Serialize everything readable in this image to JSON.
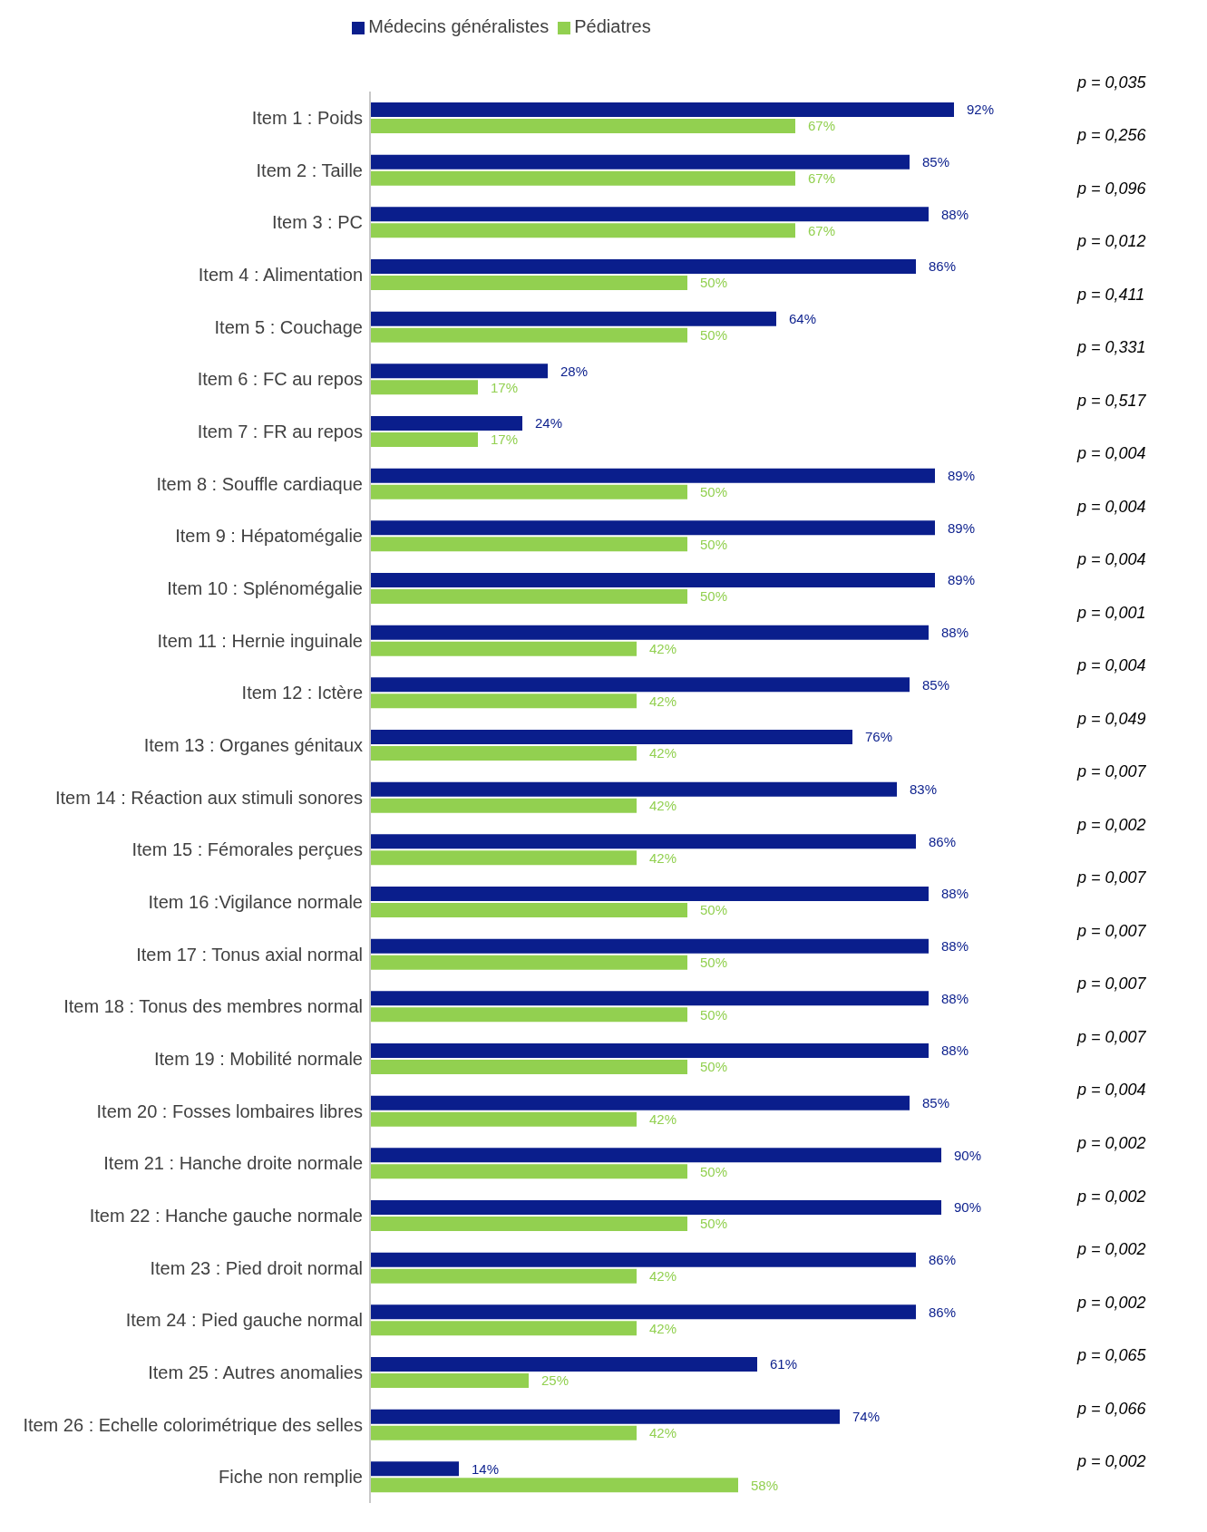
{
  "chart_data": {
    "type": "bar",
    "orientation": "horizontal",
    "legend": "top",
    "tick_labels": "y",
    "categories": [
      "Item 1 : Poids",
      "Item 2 : Taille",
      "Item 3 : PC",
      "Item 4 : Alimentation",
      "Item 5 : Couchage",
      "Item 6 : FC au repos",
      "Item 7 : FR au repos",
      "Item 8 : Souffle cardiaque",
      "Item 9 : Hépatomégalie",
      "Item 10 : Splénomégalie",
      "Item 11 : Hernie inguinale",
      "Item 12 : Ictère",
      "Item 13 : Organes génitaux",
      "Item 14 : Réaction aux stimuli sonores",
      "Item 15 : Fémorales perçues",
      "Item 16 :Vigilance normale",
      "Item 17 : Tonus axial normal",
      "Item 18 : Tonus des membres normal",
      "Item 19 : Mobilité normale",
      "Item 20 : Fosses lombaires libres",
      "Item 21 : Hanche droite normale",
      "Item 22 : Hanche gauche normale",
      "Item 23 : Pied droit normal",
      "Item 24 : Pied gauche normal",
      "Item 25 : Autres anomalies",
      "Item 26 : Echelle colorimétrique des selles",
      "Fiche non remplie"
    ],
    "series": [
      {
        "name": "Médecins généralistes",
        "color": "#0a1e8c",
        "values": [
          92,
          85,
          88,
          86,
          64,
          28,
          24,
          89,
          89,
          89,
          88,
          85,
          76,
          83,
          86,
          88,
          88,
          88,
          88,
          85,
          90,
          90,
          86,
          86,
          61,
          74,
          14
        ],
        "value_labels": [
          "92%",
          "85%",
          "88%",
          "86%",
          "64%",
          "28%",
          "24%",
          "89%",
          "89%",
          "89%",
          "88%",
          "85%",
          "76%",
          "83%",
          "86%",
          "88%",
          "88%",
          "88%",
          "88%",
          "85%",
          "90%",
          "90%",
          "86%",
          "86%",
          "61%",
          "74%",
          "14%"
        ]
      },
      {
        "name": "Pédiatres",
        "color": "#92d050",
        "values": [
          67,
          67,
          67,
          50,
          50,
          17,
          17,
          50,
          50,
          50,
          42,
          42,
          42,
          42,
          42,
          50,
          50,
          50,
          50,
          42,
          50,
          50,
          42,
          42,
          25,
          42,
          58
        ],
        "value_labels": [
          "67%",
          "67%",
          "67%",
          "50%",
          "50%",
          "17%",
          "17%",
          "50%",
          "50%",
          "50%",
          "42%",
          "42%",
          "42%",
          "42%",
          "42%",
          "50%",
          "50%",
          "50%",
          "50%",
          "42%",
          "50%",
          "50%",
          "42%",
          "42%",
          "25%",
          "42%",
          "58%"
        ]
      }
    ],
    "annotations": [
      "p = 0,035",
      "p = 0,256",
      "p = 0,096",
      "p = 0,012",
      "p = 0,411",
      "p = 0,331",
      "p = 0,517",
      "p = 0,004",
      "p = 0,004",
      "p = 0,004",
      "p = 0,001",
      "p = 0,004",
      "p = 0,049",
      "p = 0,007",
      "p = 0,002",
      "p = 0,007",
      "p = 0,007",
      "p = 0,007",
      "p = 0,007",
      "p = 0,004",
      "p = 0,002",
      "p = 0,002",
      "p = 0,002",
      "p = 0,002",
      "p = 0,065",
      "p = 0,066",
      "p = 0,002"
    ]
  }
}
